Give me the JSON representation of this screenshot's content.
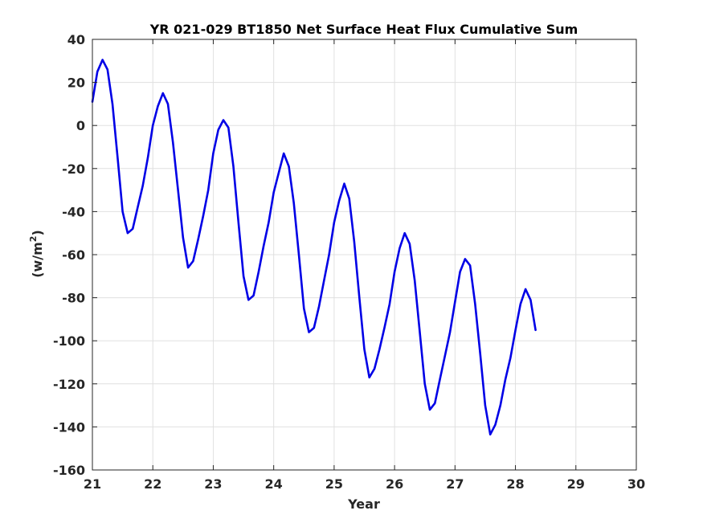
{
  "chart_data": {
    "type": "line",
    "title": "YR 021-029 BT1850 Net Surface Heat Flux  Cumulative Sum",
    "xlabel": "Year",
    "ylabel_base": "(w/m",
    "ylabel_sup": "2",
    "ylabel_close": ")",
    "xlim": [
      21,
      30
    ],
    "ylim": [
      -160,
      40
    ],
    "xticks": [
      21,
      22,
      23,
      24,
      25,
      26,
      27,
      28,
      29,
      30
    ],
    "yticks": [
      40,
      20,
      0,
      -20,
      -40,
      -60,
      -80,
      -100,
      -120,
      -140,
      -160
    ],
    "grid": true,
    "series": [
      {
        "color": "#0000e6",
        "x": [
          21.0,
          21.083,
          21.167,
          21.25,
          21.333,
          21.417,
          21.5,
          21.583,
          21.667,
          21.75,
          21.833,
          21.917,
          22.0,
          22.083,
          22.167,
          22.25,
          22.333,
          22.417,
          22.5,
          22.583,
          22.667,
          22.75,
          22.833,
          22.917,
          23.0,
          23.083,
          23.167,
          23.25,
          23.333,
          23.417,
          23.5,
          23.583,
          23.667,
          23.75,
          23.833,
          23.917,
          24.0,
          24.083,
          24.167,
          24.25,
          24.333,
          24.417,
          24.5,
          24.583,
          24.667,
          24.75,
          24.833,
          24.917,
          25.0,
          25.083,
          25.167,
          25.25,
          25.333,
          25.417,
          25.5,
          25.583,
          25.667,
          25.75,
          25.833,
          25.917,
          26.0,
          26.083,
          26.167,
          26.25,
          26.333,
          26.417,
          26.5,
          26.583,
          26.667,
          26.75,
          26.833,
          26.917,
          27.0,
          27.083,
          27.167,
          27.25,
          27.333,
          27.417,
          27.5,
          27.583,
          27.667,
          27.75,
          27.833,
          27.917,
          28.0,
          28.083,
          28.167,
          28.25,
          28.333
        ],
        "y": [
          11,
          25,
          30.5,
          26,
          10,
          -15,
          -40,
          -50,
          -48,
          -38,
          -28,
          -15,
          0,
          9,
          15,
          10,
          -8,
          -30,
          -52,
          -66,
          -63,
          -53,
          -42,
          -30,
          -13,
          -2,
          2.5,
          -1,
          -19,
          -45,
          -70,
          -81,
          -79,
          -68,
          -56,
          -45,
          -31,
          -22,
          -13,
          -19,
          -36,
          -60,
          -85,
          -96,
          -94,
          -84,
          -72,
          -60,
          -45,
          -35,
          -27,
          -34,
          -54,
          -80,
          -104,
          -117,
          -113,
          -104,
          -94,
          -83,
          -68,
          -57,
          -50,
          -55,
          -72,
          -96,
          -120,
          -132,
          -129,
          -118,
          -107,
          -96,
          -82,
          -68,
          -62,
          -65,
          -83,
          -106,
          -130,
          -143.5,
          -139,
          -130,
          -118,
          -108,
          -95,
          -83,
          -76,
          -81,
          -95
        ]
      }
    ]
  }
}
